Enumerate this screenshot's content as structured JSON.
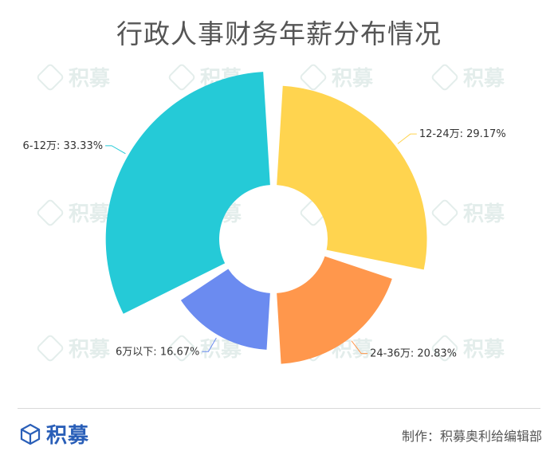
{
  "title": "行政人事财务年薪分布情况",
  "watermark": {
    "brand": "积募"
  },
  "chart_data": {
    "type": "pie",
    "variant": "rose",
    "start_angle_deg": 0,
    "legend": "none",
    "slices": [
      {
        "label": "12-24万",
        "value": 29.17,
        "percent_text": "29.17%",
        "color": "#ffd44f"
      },
      {
        "label": "24-36万",
        "value": 20.83,
        "percent_text": "20.83%",
        "color": "#ff974c"
      },
      {
        "label": "6万以下",
        "value": 16.67,
        "percent_text": "16.67%",
        "color": "#6b8bf0"
      },
      {
        "label": "6-12万",
        "value": 33.33,
        "percent_text": "33.33%",
        "color": "#25cad7"
      }
    ]
  },
  "footer": {
    "brand": "积募",
    "credit": "制作：积募奥利给编辑部"
  }
}
